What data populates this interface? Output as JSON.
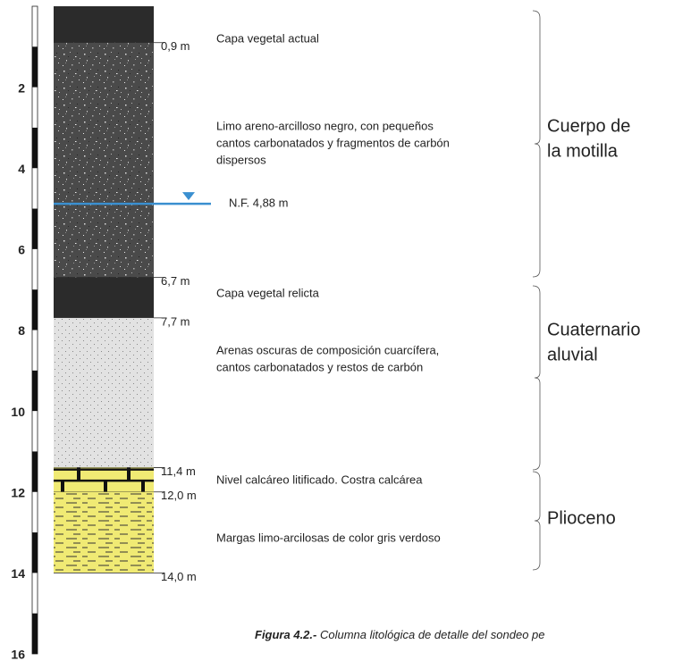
{
  "depth_scale": {
    "range": [
      0,
      16
    ],
    "ticks": [
      2,
      4,
      6,
      8,
      10,
      12,
      14,
      16
    ]
  },
  "layers": [
    {
      "description": [
        "Capa vegetal actual"
      ],
      "base": {
        "value": 0.9,
        "label": "0,9 m"
      }
    },
    {
      "description": [
        "Limo areno-arcilloso negro, con pequeños",
        "cantos carbonatados y fragmentos de carbón",
        "dispersos"
      ],
      "base": {
        "value": 6.7,
        "label": "6,7 m"
      }
    },
    {
      "description": [
        "Capa vegetal relicta"
      ],
      "base": {
        "value": 7.7,
        "label": "7,7 m"
      }
    },
    {
      "description": [
        "Arenas oscuras de composición cuarcífera,",
        "cantos carbonatados y restos de carbón"
      ],
      "base": {
        "value": 11.4,
        "label": "11,4 m"
      }
    },
    {
      "description": [
        "Nivel calcáreo litificado. Costra calcárea"
      ],
      "base": {
        "value": 12.0,
        "label": "12,0 m"
      }
    },
    {
      "description": [
        "Margas limo-arcilosas de color gris verdoso"
      ],
      "base": {
        "value": 14.0,
        "label": "14,0 m"
      }
    }
  ],
  "water_table": {
    "value": 4.88,
    "label": "N.F. 4,88 m"
  },
  "units": [
    {
      "name": [
        "Cuerpo de",
        "la motilla"
      ]
    },
    {
      "name": [
        "Cuaternario",
        "aluvial"
      ]
    },
    {
      "name": [
        "Plioceno"
      ]
    }
  ],
  "caption": {
    "title": "Figura 4.2.-",
    "text": "Columna litológica de detalle del sondeo pe"
  }
}
